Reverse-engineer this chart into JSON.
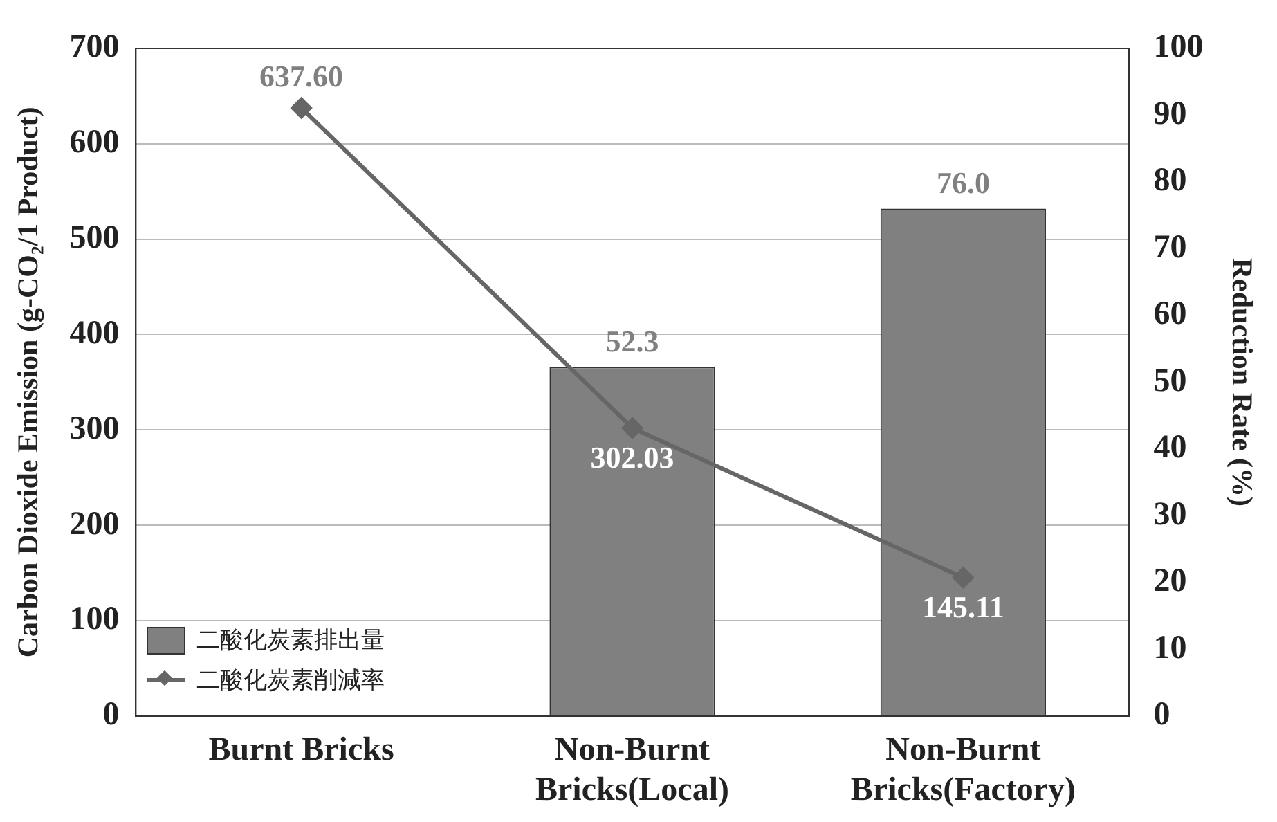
{
  "chart_data": {
    "type": "bar",
    "categories": [
      "Burnt Bricks",
      "Non-Burnt Bricks(Local)",
      "Non-Burnt Bricks(Factory)"
    ],
    "ylabel": "Carbon Dioxide Emission (g-CO₂/1 Product)",
    "y2label": "Reduction Rate (%)",
    "ylim": [
      0,
      700
    ],
    "yticks": [
      0,
      100,
      200,
      300,
      400,
      500,
      600,
      700
    ],
    "y2lim": [
      0,
      100
    ],
    "y2ticks": [
      0,
      10,
      20,
      30,
      40,
      50,
      60,
      70,
      80,
      90,
      100
    ],
    "grid": "y",
    "legend": "bottom left",
    "marker": "diamond",
    "series": [
      {
        "name": "二酸化炭素排出量",
        "axis": "y2",
        "color": "#808080",
        "values": [
          null,
          52.3,
          76.0
        ],
        "value_labels": [
          null,
          "52.3",
          "76.0"
        ]
      },
      {
        "name": "二酸化炭素削減率",
        "type": "line",
        "axis": "y",
        "color": "#666666",
        "values": [
          637.6,
          302.03,
          145.11
        ],
        "value_labels": [
          "637.60",
          "302.03",
          "145.11"
        ]
      }
    ]
  }
}
